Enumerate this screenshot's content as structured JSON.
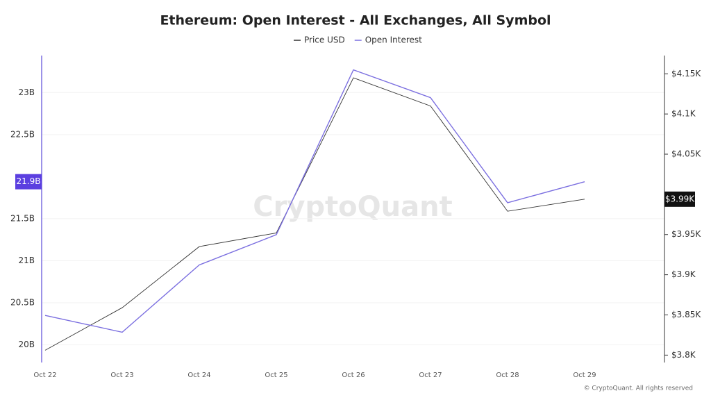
{
  "chart_data": {
    "type": "line",
    "title": "Ethereum: Open Interest - All Exchanges, All Symbol",
    "watermark": "CryptoQuant",
    "copyright": "© CryptoQuant. All rights reserved",
    "categories": [
      "Oct 22",
      "Oct 23",
      "Oct 24",
      "Oct 25",
      "Oct 26",
      "Oct 27",
      "Oct 28",
      "Oct 29"
    ],
    "series": [
      {
        "name": "Price USD",
        "color": "#333333",
        "axis": "y2",
        "values": [
          3.806,
          3.859,
          3.935,
          3.952,
          4.145,
          4.11,
          3.979,
          3.994
        ],
        "value_labels": [
          null,
          null,
          null,
          null,
          null,
          null,
          null,
          "$3.99K"
        ]
      },
      {
        "name": "Open Interest",
        "color": "#7b6fe0",
        "values": [
          20.35,
          20.15,
          20.95,
          21.31,
          23.27,
          22.94,
          21.69,
          21.94
        ],
        "value_labels": [
          null,
          null,
          null,
          null,
          null,
          null,
          null,
          "21.9B"
        ]
      }
    ],
    "ylim": [
      19.79,
      23.44
    ],
    "yticks": [
      {
        "value": 20,
        "label": "20B"
      },
      {
        "value": 20.5,
        "label": "20.5B"
      },
      {
        "value": 21,
        "label": "21B"
      },
      {
        "value": 21.5,
        "label": "21.5B"
      },
      {
        "value": 22.5,
        "label": "22.5B"
      },
      {
        "value": 23,
        "label": "23B"
      }
    ],
    "y2lim": [
      3.7908,
      4.1727
    ],
    "y2ticks": [
      {
        "value": 3.8,
        "label": "$3.8K"
      },
      {
        "value": 3.85,
        "label": "$3.85K"
      },
      {
        "value": 3.9,
        "label": "$3.9K"
      },
      {
        "value": 3.95,
        "label": "$3.95K"
      },
      {
        "value": 4.05,
        "label": "$4.05K"
      },
      {
        "value": 4.1,
        "label": "$4.1K"
      },
      {
        "value": 4.15,
        "label": "$4.15K"
      }
    ],
    "grid": true
  }
}
